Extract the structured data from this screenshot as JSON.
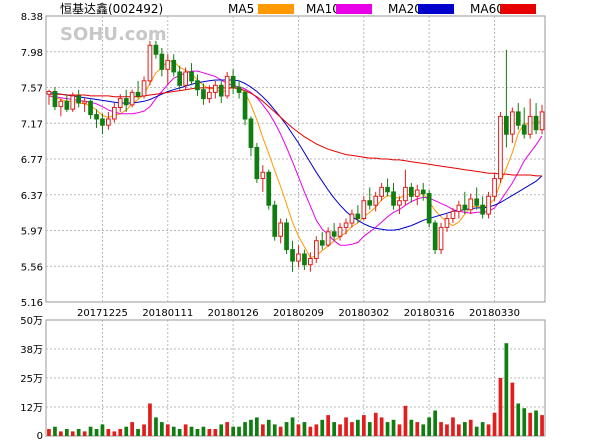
{
  "header": {
    "title": "恒基达鑫",
    "code": "(002492)",
    "watermark": "SOHU.com"
  },
  "colors": {
    "up": "#e21d1d",
    "down": "#0f7d0f",
    "ma5": "#ff9900",
    "ma10": "#e800e8",
    "ma20": "#0000cc",
    "ma60": "#e60000"
  },
  "chart_data": [
    {
      "type": "candlestick",
      "title": "",
      "legend": [
        {
          "name": "MA5",
          "color": "#ff9900"
        },
        {
          "name": "MA10",
          "color": "#e800e8"
        },
        {
          "name": "MA20",
          "color": "#0000cc"
        },
        {
          "name": "MA60",
          "color": "#e60000"
        }
      ],
      "legend_placement": "top",
      "ylim": [
        5.16,
        8.38
      ],
      "y_ticks": [
        "8.38",
        "7.98",
        "7.57",
        "7.17",
        "6.77",
        "6.37",
        "5.97",
        "5.56",
        "5.16"
      ],
      "x_tick_labels": [
        {
          "label": "20171225",
          "index": 9
        },
        {
          "label": "20180111",
          "index": 20
        },
        {
          "label": "20180126",
          "index": 31
        },
        {
          "label": "20180209",
          "index": 42
        },
        {
          "label": "20180302",
          "index": 53
        },
        {
          "label": "20180316",
          "index": 64
        },
        {
          "label": "20180330",
          "index": 75
        }
      ],
      "grid": true,
      "series": [
        {
          "name": "OHLC",
          "values": [
            [
              7.5,
              7.55,
              7.38,
              7.53
            ],
            [
              7.53,
              7.58,
              7.32,
              7.36
            ],
            [
              7.36,
              7.45,
              7.25,
              7.42
            ],
            [
              7.42,
              7.5,
              7.3,
              7.33
            ],
            [
              7.33,
              7.52,
              7.3,
              7.48
            ],
            [
              7.48,
              7.55,
              7.35,
              7.4
            ],
            [
              7.4,
              7.46,
              7.3,
              7.42
            ],
            [
              7.42,
              7.44,
              7.22,
              7.27
            ],
            [
              7.27,
              7.33,
              7.12,
              7.22
            ],
            [
              7.22,
              7.28,
              7.05,
              7.15
            ],
            [
              7.15,
              7.3,
              7.1,
              7.22
            ],
            [
              7.22,
              7.4,
              7.18,
              7.35
            ],
            [
              7.35,
              7.5,
              7.3,
              7.45
            ],
            [
              7.45,
              7.55,
              7.3,
              7.38
            ],
            [
              7.38,
              7.55,
              7.35,
              7.52
            ],
            [
              7.52,
              7.65,
              7.45,
              7.48
            ],
            [
              7.48,
              7.7,
              7.45,
              7.65
            ],
            [
              7.65,
              8.1,
              7.6,
              8.05
            ],
            [
              8.05,
              8.1,
              7.9,
              7.95
            ],
            [
              7.95,
              8.02,
              7.7,
              7.78
            ],
            [
              7.78,
              7.95,
              7.6,
              7.88
            ],
            [
              7.88,
              7.95,
              7.7,
              7.75
            ],
            [
              7.75,
              7.82,
              7.55,
              7.6
            ],
            [
              7.6,
              7.8,
              7.55,
              7.75
            ],
            [
              7.75,
              7.85,
              7.6,
              7.65
            ],
            [
              7.65,
              7.72,
              7.48,
              7.55
            ],
            [
              7.55,
              7.62,
              7.38,
              7.45
            ],
            [
              7.45,
              7.6,
              7.4,
              7.52
            ],
            [
              7.52,
              7.65,
              7.45,
              7.6
            ],
            [
              7.6,
              7.65,
              7.4,
              7.48
            ],
            [
              7.48,
              7.75,
              7.45,
              7.7
            ],
            [
              7.7,
              7.78,
              7.5,
              7.58
            ],
            [
              7.58,
              7.65,
              7.45,
              7.52
            ],
            [
              7.52,
              7.55,
              7.15,
              7.22
            ],
            [
              7.22,
              7.25,
              6.8,
              6.9
            ],
            [
              6.9,
              6.95,
              6.5,
              6.55
            ],
            [
              6.55,
              6.7,
              6.4,
              6.62
            ],
            [
              6.62,
              6.65,
              6.2,
              6.25
            ],
            [
              6.25,
              6.3,
              5.85,
              5.9
            ],
            [
              5.9,
              6.1,
              5.82,
              6.05
            ],
            [
              6.05,
              6.1,
              5.7,
              5.75
            ],
            [
              5.75,
              5.85,
              5.5,
              5.62
            ],
            [
              5.62,
              5.8,
              5.55,
              5.7
            ],
            [
              5.7,
              5.75,
              5.52,
              5.58
            ],
            [
              5.58,
              5.72,
              5.5,
              5.65
            ],
            [
              5.65,
              5.9,
              5.6,
              5.85
            ],
            [
              5.85,
              5.95,
              5.75,
              5.8
            ],
            [
              5.8,
              6.0,
              5.78,
              5.95
            ],
            [
              5.95,
              6.05,
              5.85,
              5.9
            ],
            [
              5.9,
              6.05,
              5.85,
              6.0
            ],
            [
              6.0,
              6.1,
              5.92,
              6.05
            ],
            [
              6.05,
              6.2,
              6.0,
              6.15
            ],
            [
              6.15,
              6.25,
              6.05,
              6.1
            ],
            [
              6.1,
              6.35,
              6.08,
              6.3
            ],
            [
              6.3,
              6.45,
              6.2,
              6.25
            ],
            [
              6.25,
              6.4,
              6.18,
              6.35
            ],
            [
              6.35,
              6.5,
              6.3,
              6.45
            ],
            [
              6.45,
              6.55,
              6.35,
              6.4
            ],
            [
              6.4,
              6.5,
              6.2,
              6.25
            ],
            [
              6.25,
              6.35,
              6.15,
              6.3
            ],
            [
              6.3,
              6.65,
              6.25,
              6.45
            ],
            [
              6.45,
              6.5,
              6.28,
              6.35
            ],
            [
              6.35,
              6.48,
              6.25,
              6.42
            ],
            [
              6.42,
              6.5,
              6.3,
              6.38
            ],
            [
              6.38,
              6.42,
              6.0,
              6.05
            ],
            [
              6.05,
              6.08,
              5.7,
              5.75
            ],
            [
              5.75,
              6.05,
              5.7,
              6.0
            ],
            [
              6.0,
              6.15,
              5.95,
              6.1
            ],
            [
              6.1,
              6.22,
              6.05,
              6.18
            ],
            [
              6.18,
              6.3,
              6.1,
              6.25
            ],
            [
              6.25,
              6.4,
              6.15,
              6.2
            ],
            [
              6.2,
              6.38,
              6.15,
              6.32
            ],
            [
              6.32,
              6.45,
              6.2,
              6.25
            ],
            [
              6.25,
              6.35,
              6.1,
              6.15
            ],
            [
              6.15,
              6.4,
              6.1,
              6.35
            ],
            [
              6.35,
              6.6,
              6.3,
              6.55
            ],
            [
              6.55,
              7.3,
              6.5,
              7.25
            ],
            [
              7.25,
              8.0,
              6.9,
              7.05
            ],
            [
              7.05,
              7.35,
              6.95,
              7.3
            ],
            [
              7.3,
              7.4,
              7.1,
              7.15
            ],
            [
              7.15,
              7.35,
              7.0,
              7.05
            ],
            [
              7.05,
              7.45,
              7.0,
              7.25
            ],
            [
              7.25,
              7.4,
              7.05,
              7.1
            ],
            [
              7.1,
              7.38,
              7.05,
              7.3
            ]
          ]
        },
        {
          "name": "MA5",
          "values": [
            7.48,
            7.46,
            7.44,
            7.42,
            7.42,
            7.4,
            7.39,
            7.37,
            7.32,
            7.26,
            7.24,
            7.26,
            7.28,
            7.32,
            7.39,
            7.44,
            7.5,
            7.62,
            7.74,
            7.8,
            7.87,
            7.87,
            7.8,
            7.77,
            7.73,
            7.66,
            7.6,
            7.56,
            7.56,
            7.52,
            7.55,
            7.58,
            7.58,
            7.52,
            7.38,
            7.21,
            7.01,
            6.83,
            6.64,
            6.46,
            6.26,
            6.06,
            5.9,
            5.78,
            5.66,
            5.68,
            5.74,
            5.79,
            5.85,
            5.9,
            5.94,
            6.01,
            6.05,
            6.12,
            6.17,
            6.23,
            6.31,
            6.36,
            6.34,
            6.33,
            6.37,
            6.37,
            6.37,
            6.38,
            6.29,
            6.19,
            6.12,
            6.06,
            6.02,
            6.06,
            6.15,
            6.23,
            6.24,
            6.23,
            6.25,
            6.32,
            6.5,
            6.67,
            6.84,
            7.06,
            7.17,
            7.16,
            7.19,
            7.19
          ]
        },
        {
          "name": "MA10",
          "values": [
            7.48,
            7.47,
            7.46,
            7.45,
            7.44,
            7.43,
            7.42,
            7.41,
            7.39,
            7.36,
            7.32,
            7.3,
            7.28,
            7.28,
            7.28,
            7.29,
            7.31,
            7.36,
            7.45,
            7.53,
            7.61,
            7.68,
            7.71,
            7.74,
            7.76,
            7.76,
            7.74,
            7.72,
            7.7,
            7.66,
            7.62,
            7.6,
            7.58,
            7.56,
            7.52,
            7.46,
            7.38,
            7.29,
            7.18,
            7.05,
            6.9,
            6.74,
            6.57,
            6.4,
            6.24,
            6.08,
            5.98,
            5.92,
            5.85,
            5.8,
            5.8,
            5.81,
            5.83,
            5.9,
            5.95,
            6.0,
            6.06,
            6.12,
            6.17,
            6.2,
            6.25,
            6.29,
            6.32,
            6.34,
            6.33,
            6.3,
            6.27,
            6.24,
            6.2,
            6.18,
            6.17,
            6.16,
            6.17,
            6.17,
            6.18,
            6.22,
            6.3,
            6.4,
            6.5,
            6.62,
            6.75,
            6.84,
            6.93,
            7.03
          ]
        },
        {
          "name": "MA20",
          "values": [
            7.52,
            7.51,
            7.5,
            7.49,
            7.48,
            7.47,
            7.46,
            7.45,
            7.44,
            7.43,
            7.42,
            7.41,
            7.4,
            7.4,
            7.4,
            7.41,
            7.42,
            7.44,
            7.47,
            7.5,
            7.53,
            7.55,
            7.57,
            7.59,
            7.61,
            7.63,
            7.64,
            7.65,
            7.66,
            7.66,
            7.66,
            7.66,
            7.65,
            7.62,
            7.58,
            7.53,
            7.47,
            7.4,
            7.32,
            7.24,
            7.15,
            7.05,
            6.95,
            6.84,
            6.73,
            6.62,
            6.52,
            6.42,
            6.33,
            6.25,
            6.18,
            6.12,
            6.08,
            6.04,
            6.01,
            5.99,
            5.98,
            5.97,
            5.97,
            5.98,
            6.0,
            6.02,
            6.05,
            6.08,
            6.1,
            6.12,
            6.14,
            6.16,
            6.18,
            6.19,
            6.2,
            6.21,
            6.22,
            6.22,
            6.23,
            6.25,
            6.28,
            6.32,
            6.36,
            6.4,
            6.44,
            6.48,
            6.52,
            6.58
          ]
        },
        {
          "name": "MA60",
          "values": [
            7.5,
            7.5,
            7.5,
            7.49,
            7.49,
            7.49,
            7.49,
            7.48,
            7.48,
            7.48,
            7.48,
            7.47,
            7.47,
            7.47,
            7.47,
            7.47,
            7.48,
            7.49,
            7.5,
            7.51,
            7.52,
            7.53,
            7.54,
            7.55,
            7.56,
            7.57,
            7.57,
            7.57,
            7.57,
            7.57,
            7.57,
            7.57,
            7.56,
            7.54,
            7.51,
            7.47,
            7.42,
            7.36,
            7.3,
            7.24,
            7.18,
            7.12,
            7.07,
            7.02,
            6.98,
            6.94,
            6.91,
            6.88,
            6.86,
            6.84,
            6.82,
            6.81,
            6.8,
            6.79,
            6.78,
            6.78,
            6.77,
            6.77,
            6.76,
            6.76,
            6.75,
            6.74,
            6.73,
            6.72,
            6.71,
            6.7,
            6.69,
            6.68,
            6.67,
            6.66,
            6.65,
            6.64,
            6.63,
            6.62,
            6.61,
            6.61,
            6.6,
            6.6,
            6.59,
            6.59,
            6.59,
            6.59,
            6.58,
            6.58
          ]
        }
      ]
    },
    {
      "type": "bar",
      "title": "",
      "ylim": [
        0,
        50
      ],
      "y_ticks": [
        "50万",
        "38万",
        "25万",
        "12万",
        "0"
      ],
      "values": [
        3,
        4,
        2,
        3,
        2,
        3,
        2,
        4,
        3,
        5,
        3,
        2,
        3,
        4,
        6,
        3,
        5,
        14,
        8,
        6,
        5,
        4,
        3,
        5,
        4,
        3,
        4,
        3,
        3,
        5,
        6,
        4,
        4,
        6,
        7,
        8,
        5,
        7,
        5,
        4,
        6,
        8,
        5,
        6,
        4,
        5,
        7,
        9,
        6,
        5,
        8,
        6,
        7,
        9,
        6,
        10,
        8,
        6,
        7,
        5,
        13,
        7,
        6,
        5,
        8,
        11,
        6,
        5,
        8,
        5,
        6,
        7,
        4,
        6,
        5,
        10,
        25,
        40,
        23,
        14,
        12,
        10,
        11,
        9
      ],
      "up_down": [
        "u",
        "d",
        "u",
        "d",
        "u",
        "d",
        "u",
        "d",
        "d",
        "d",
        "u",
        "u",
        "u",
        "d",
        "u",
        "d",
        "u",
        "u",
        "d",
        "d",
        "u",
        "d",
        "d",
        "u",
        "d",
        "d",
        "d",
        "u",
        "u",
        "d",
        "u",
        "d",
        "d",
        "d",
        "d",
        "d",
        "u",
        "d",
        "d",
        "u",
        "d",
        "d",
        "u",
        "d",
        "u",
        "u",
        "d",
        "u",
        "d",
        "u",
        "u",
        "u",
        "d",
        "u",
        "d",
        "u",
        "u",
        "d",
        "d",
        "u",
        "u",
        "d",
        "u",
        "d",
        "d",
        "d",
        "u",
        "u",
        "u",
        "u",
        "d",
        "u",
        "d",
        "d",
        "u",
        "u",
        "u",
        "d",
        "u",
        "d",
        "d",
        "u",
        "d",
        "u"
      ]
    }
  ]
}
